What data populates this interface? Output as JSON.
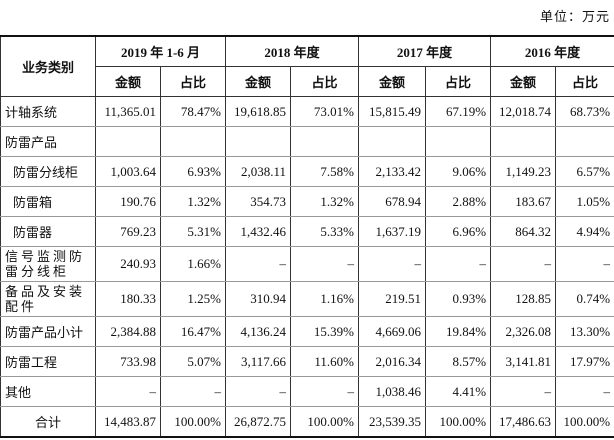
{
  "unit_note": "单位：万元",
  "table": {
    "header": {
      "category": "业务类别",
      "years": [
        "2019 年 1-6 月",
        "2018 年度",
        "2017 年度",
        "2016 年度"
      ],
      "sub": [
        "金额",
        "占比"
      ]
    },
    "rows": [
      [
        "计轴系统",
        "11,365.01",
        "78.47%",
        "19,618.85",
        "73.01%",
        "15,815.49",
        "67.19%",
        "12,018.74",
        "68.73%"
      ],
      [
        "防雷产品"
      ],
      [
        "防雷分线柜",
        "1,003.64",
        "6.93%",
        "2,038.11",
        "7.58%",
        "2,133.42",
        "9.06%",
        "1,149.23",
        "6.57%"
      ],
      [
        "防雷箱",
        "190.76",
        "1.32%",
        "354.73",
        "1.32%",
        "678.94",
        "2.88%",
        "183.67",
        "1.05%"
      ],
      [
        "防雷器",
        "769.23",
        "5.31%",
        "1,432.46",
        "5.33%",
        "1,637.19",
        "6.96%",
        "864.32",
        "4.94%"
      ],
      [
        "信号监测防雷分线柜",
        "240.93",
        "1.66%",
        "–",
        "–",
        "–",
        "–",
        "–",
        "–"
      ],
      [
        "备品及安装配件",
        "180.33",
        "1.25%",
        "310.94",
        "1.16%",
        "219.51",
        "0.93%",
        "128.85",
        "0.74%"
      ],
      [
        "防雷产品小计",
        "2,384.88",
        "16.47%",
        "4,136.24",
        "15.39%",
        "4,669.06",
        "19.84%",
        "2,326.08",
        "13.30%"
      ],
      [
        "防雷工程",
        "733.98",
        "5.07%",
        "3,117.66",
        "11.60%",
        "2,016.34",
        "8.57%",
        "3,141.81",
        "17.97%"
      ],
      [
        "其他",
        "–",
        "–",
        "–",
        "–",
        "1,038.46",
        "4.41%",
        "–",
        "–"
      ],
      [
        "合计",
        "14,483.87",
        "100.00%",
        "26,872.75",
        "100.00%",
        "23,539.35",
        "100.00%",
        "17,486.63",
        "100.00%"
      ]
    ]
  }
}
